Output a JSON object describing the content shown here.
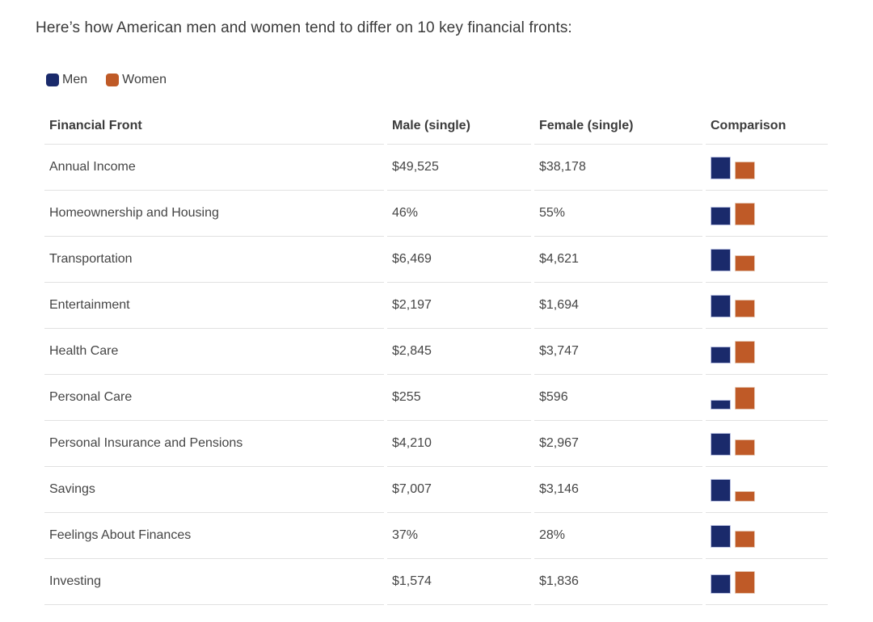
{
  "title": "Here’s how American men and women tend to differ on 10 key financial fronts:",
  "legend": {
    "men_label": "Men",
    "women_label": "Women",
    "men_color": "#1a2a6b",
    "women_color": "#bf5a27"
  },
  "table": {
    "headers": [
      "Financial Front",
      "Male (single)",
      "Female (single)",
      "Comparison"
    ],
    "rows": [
      {
        "front": "Annual Income",
        "male": "$49,525",
        "female": "$38,178",
        "male_value": 49525,
        "female_value": 38178
      },
      {
        "front": "Homeownership and Housing",
        "male": "46%",
        "female": "55%",
        "male_value": 46,
        "female_value": 55
      },
      {
        "front": "Transportation",
        "male": "$6,469",
        "female": "$4,621",
        "male_value": 6469,
        "female_value": 4621
      },
      {
        "front": "Entertainment",
        "male": "$2,197",
        "female": "$1,694",
        "male_value": 2197,
        "female_value": 1694
      },
      {
        "front": "Health Care",
        "male": "$2,845",
        "female": "$3,747",
        "male_value": 2845,
        "female_value": 3747
      },
      {
        "front": "Personal Care",
        "male": "$255",
        "female": "$596",
        "male_value": 255,
        "female_value": 596
      },
      {
        "front": "Personal Insurance and Pensions",
        "male": "$4,210",
        "female": "$2,967",
        "male_value": 4210,
        "female_value": 2967
      },
      {
        "front": "Savings",
        "male": "$7,007",
        "female": "$3,146",
        "male_value": 7007,
        "female_value": 3146
      },
      {
        "front": "Feelings About Finances",
        "male": "37%",
        "female": "28%",
        "male_value": 37,
        "female_value": 28
      },
      {
        "front": "Investing",
        "male": "$1,574",
        "female": "$1,836",
        "male_value": 1574,
        "female_value": 1836
      }
    ]
  },
  "chart_data": {
    "type": "table",
    "title": "Here’s how American men and women tend to differ on 10 key financial fronts:",
    "columns": [
      "Financial Front",
      "Male (single)",
      "Female (single)",
      "Comparison"
    ],
    "categories": [
      "Annual Income",
      "Homeownership and Housing",
      "Transportation",
      "Entertainment",
      "Health Care",
      "Personal Care",
      "Personal Insurance and Pensions",
      "Savings",
      "Feelings About Finances",
      "Investing"
    ],
    "series": [
      {
        "name": "Men",
        "color": "#1a2a6b",
        "values": [
          49525,
          46,
          6469,
          2197,
          2845,
          255,
          4210,
          7007,
          37,
          1574
        ]
      },
      {
        "name": "Women",
        "color": "#bf5a27",
        "values": [
          38178,
          55,
          4621,
          1694,
          3747,
          596,
          2967,
          3146,
          28,
          1836
        ]
      }
    ],
    "value_units": [
      "USD",
      "percent",
      "USD",
      "USD",
      "USD",
      "USD",
      "USD",
      "USD",
      "percent",
      "USD"
    ],
    "comparison_note": "Per-row paired mini bar chart, bars bottom-aligned, taller bar = larger value, scaled to row max",
    "legend_position": "top-left",
    "grid": false
  }
}
